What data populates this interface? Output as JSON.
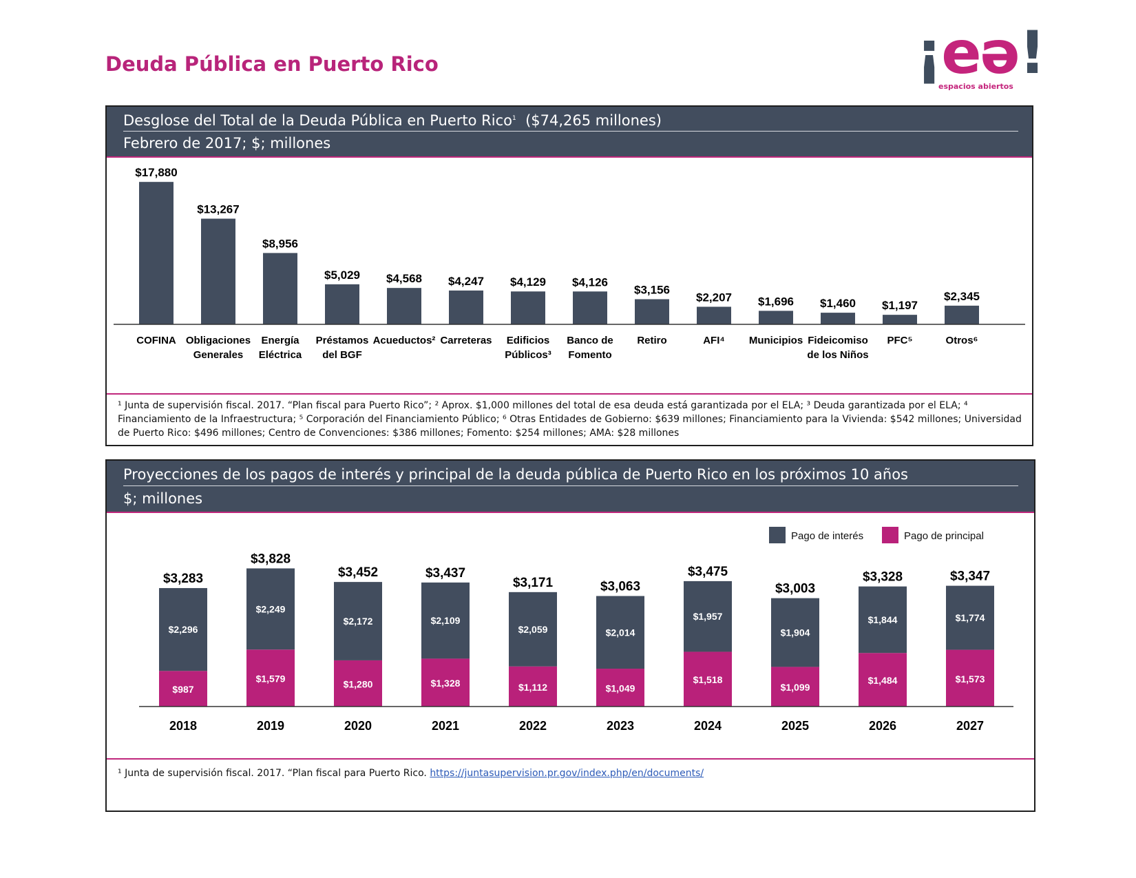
{
  "page": {
    "title": "Deuda Pública en Puerto Rico",
    "logo": {
      "mark": "¡eə!",
      "subtitle": "espacios abiertos"
    }
  },
  "colors": {
    "accent": "#b8247a",
    "bar_dark": "#424d5e",
    "bar_pink": "#b9217a",
    "header_bg": "#424d5e"
  },
  "panel1": {
    "title": "Desglose del Total de la Deuda Pública en Puerto Rico",
    "title_sup": "1",
    "title_total": "($74,265 millones)",
    "subtitle": "Febrero de 2017; $; millones",
    "footnote_lines": [
      "¹ Junta de supervisión fiscal. 2017. “Plan fiscal para Puerto Rico”; ² Aprox. $1,000 millones del total de esa deuda está garantizada por el ELA; ³ Deuda garantizada por el ELA; ⁴",
      "Financiamiento de la Infraestructura; ⁵ Corporación del Financiamiento Público; ⁶ Otras Entidades de Gobierno: $639 millones; Financiamiento para la Vivienda: $542 millones; Universidad",
      "de Puerto Rico: $496 millones; Centro de Convenciones: $386 millones; Fomento: $254 millones; AMA: $28 millones"
    ]
  },
  "panel2": {
    "title": "Proyecciones de los pagos de interés y principal de la deuda pública de Puerto Rico en los próximos 10 años",
    "subtitle": "$; millones",
    "footnote_text": "¹ Junta de supervisión fiscal. 2017. “Plan fiscal para Puerto Rico.",
    "footnote_link": "https://juntasupervision.pr.gov/index.php/en/documents/"
  },
  "chart_data": [
    {
      "type": "bar",
      "title": "Desglose del Total de la Deuda Pública en Puerto Rico¹ ($74,265 millones)",
      "subtitle": "Febrero de 2017; $; millones",
      "categories": [
        [
          "COFINA"
        ],
        [
          "Obligaciones",
          "Generales"
        ],
        [
          "Energía",
          "Eléctrica"
        ],
        [
          "Préstamos",
          "del BGF"
        ],
        [
          "Acueductos²"
        ],
        [
          "Carreteras"
        ],
        [
          "Edificios",
          "Públicos³"
        ],
        [
          "Banco de",
          "Fomento"
        ],
        [
          "Retiro"
        ],
        [
          "AFI⁴"
        ],
        [
          "Municipios"
        ],
        [
          "Fideicomiso",
          "de los Niños"
        ],
        [
          "PFC⁵"
        ],
        [
          "Otros⁶"
        ]
      ],
      "values": [
        17880,
        13267,
        8956,
        5029,
        4568,
        4247,
        4129,
        4126,
        3156,
        2207,
        1696,
        1460,
        1197,
        2345
      ],
      "value_labels": [
        "$17,880",
        "$13,267",
        "$8,956",
        "$5,029",
        "$4,568",
        "$4,247",
        "$4,129",
        "$4,126",
        "$3,156",
        "$2,207",
        "$1,696",
        "$1,460",
        "$1,197",
        "$2,345"
      ],
      "ylim": [
        0,
        18500
      ],
      "grid": false
    },
    {
      "type": "bar",
      "stacked": true,
      "title": "Proyecciones de los pagos de interés y principal de la deuda pública de Puerto Rico en los próximos 10 años",
      "subtitle": "$; millones",
      "categories": [
        "2018",
        "2019",
        "2020",
        "2021",
        "2022",
        "2023",
        "2024",
        "2025",
        "2026",
        "2027"
      ],
      "series": [
        {
          "name": "Pago de principal",
          "values": [
            987,
            1579,
            1280,
            1328,
            1112,
            1049,
            1518,
            1099,
            1484,
            1573
          ],
          "labels": [
            "$987",
            "$1,579",
            "$1,280",
            "$1,328",
            "$1,112",
            "$1,049",
            "$1,518",
            "$1,099",
            "$1,484",
            "$1,573"
          ]
        },
        {
          "name": "Pago de interés",
          "values": [
            2296,
            2249,
            2172,
            2109,
            2059,
            2014,
            1957,
            1904,
            1844,
            1774
          ],
          "labels": [
            "$2,296",
            "$2,249",
            "$2,172",
            "$2,109",
            "$2,059",
            "$2,014",
            "$1,957",
            "$1,904",
            "$1,844",
            "$1,774"
          ]
        }
      ],
      "totals": [
        "$3,283",
        "$3,828",
        "$3,452",
        "$3,437",
        "$3,171",
        "$3,063",
        "$3,475",
        "$3,003",
        "$3,328",
        "$3,347"
      ],
      "legend": {
        "items": [
          "Pago de interés",
          "Pago de principal"
        ],
        "placement": "top-right"
      },
      "ylim": [
        0,
        4000
      ],
      "grid": false
    }
  ]
}
